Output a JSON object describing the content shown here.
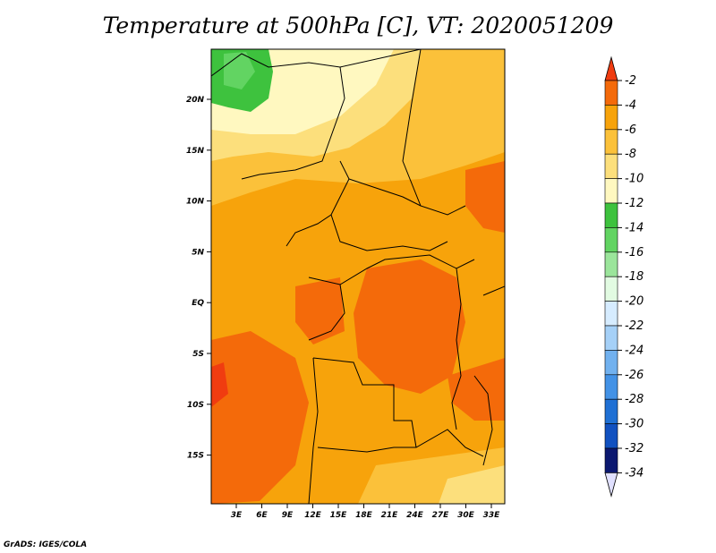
{
  "title": "Temperature at 500hPa [C], VT: 2020051209",
  "credit": "GrADS: IGES/COLA",
  "map": {
    "lon_labels": [
      "3E",
      "6E",
      "9E",
      "12E",
      "15E",
      "18E",
      "21E",
      "24E",
      "27E",
      "30E",
      "33E"
    ],
    "lat_labels": [
      "20N",
      "15N",
      "10N",
      "5N",
      "EQ",
      "5S",
      "10S",
      "15S"
    ],
    "legend": "Temperature at 500hPa [C]"
  },
  "colorbar": {
    "labels": [
      "-2",
      "-4",
      "-6",
      "-8",
      "-10",
      "-12",
      "-14",
      "-16",
      "-18",
      "-20",
      "-22",
      "-24",
      "-26",
      "-28",
      "-30",
      "-32",
      "-34"
    ],
    "colors": [
      "#f03c10",
      "#f46a0a",
      "#f7a30b",
      "#fbc13a",
      "#fcdf7c",
      "#fff8c0",
      "#3ec23e",
      "#62d462",
      "#9be59b",
      "#e2fbe2",
      "#d6ecff",
      "#a5d0f7",
      "#71b1ef",
      "#4392e6",
      "#1f70d4",
      "#1151c0",
      "#0b1870",
      "#e0e0ff"
    ]
  }
}
